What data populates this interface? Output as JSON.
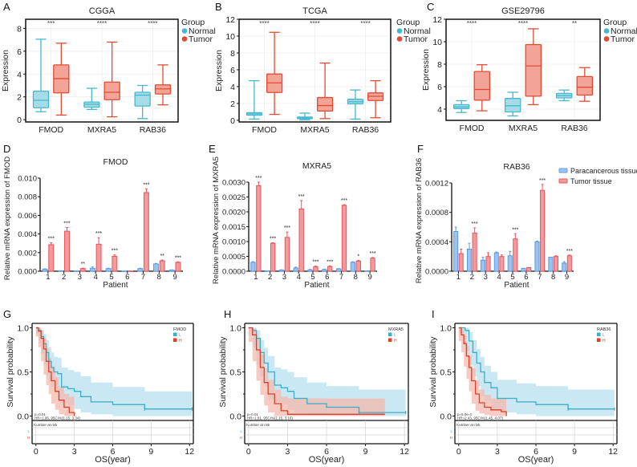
{
  "colors": {
    "normal": "#45b8cf",
    "normal_fill": "#a6dce8",
    "tumor": "#e34a33",
    "tumor_fill": "#f3a497",
    "para": "#5b9be6",
    "para_fill": "#9cc3f0",
    "tumor_tissue": "#e8555a",
    "tumor_tissue_fill": "#f49a9c",
    "km_low": "#3aaec4",
    "km_low_band": "#bfe4f2",
    "km_high": "#d9412b",
    "km_high_band": "#f4b9ae",
    "overlap_band": "#d6b8b6"
  },
  "chart_data": [
    {
      "panel": "A",
      "type": "box",
      "title": "CGGA",
      "xlabel": "",
      "ylabel": "Expression",
      "ylim": [
        -0.2,
        8.8
      ],
      "yticks": [
        0,
        2,
        4,
        6,
        8
      ],
      "categories": [
        "FMOD",
        "MXRA5",
        "RAB36"
      ],
      "significance": [
        "***",
        "****",
        "****"
      ],
      "legend": {
        "title": "Group",
        "entries": [
          "Normal",
          "Tumor"
        ],
        "position": "right"
      },
      "series": [
        {
          "name": "Normal",
          "boxes": [
            {
              "min": 0.7,
              "q1": 1.05,
              "median": 1.7,
              "q3": 2.5,
              "max": 7.05
            },
            {
              "min": 0.9,
              "q1": 1.1,
              "median": 1.35,
              "q3": 1.55,
              "max": 2.75
            },
            {
              "min": 0.1,
              "q1": 1.2,
              "median": 2.15,
              "q3": 2.4,
              "max": 3.0
            }
          ]
        },
        {
          "name": "Tumor",
          "boxes": [
            {
              "min": 0.4,
              "q1": 2.35,
              "median": 3.6,
              "q3": 4.8,
              "max": 6.7
            },
            {
              "min": 0.25,
              "q1": 1.75,
              "median": 2.4,
              "q3": 3.3,
              "max": 6.8
            },
            {
              "min": 1.3,
              "q1": 2.25,
              "median": 2.7,
              "q3": 3.05,
              "max": 4.8
            }
          ]
        }
      ]
    },
    {
      "panel": "B",
      "type": "box",
      "title": "TCGA",
      "xlabel": "",
      "ylabel": "Expression",
      "ylim": [
        -0.2,
        12.0
      ],
      "yticks": [
        0,
        2,
        4,
        6,
        8,
        10,
        12
      ],
      "categories": [
        "FMOD",
        "MXRA5",
        "RAB36"
      ],
      "significance": [
        "****",
        "****",
        "****"
      ],
      "legend": {
        "title": "Group",
        "entries": [
          "Normal",
          "Tumor"
        ],
        "position": "right"
      },
      "series": [
        {
          "name": "Normal",
          "boxes": [
            {
              "min": 0.15,
              "q1": 0.6,
              "median": 0.75,
              "q3": 0.9,
              "max": 4.7
            },
            {
              "min": 0.05,
              "q1": 0.2,
              "median": 0.28,
              "q3": 0.38,
              "max": 0.85
            },
            {
              "min": 0.15,
              "q1": 1.95,
              "median": 2.2,
              "q3": 2.5,
              "max": 3.6
            }
          ]
        },
        {
          "name": "Tumor",
          "boxes": [
            {
              "min": 0.7,
              "q1": 3.3,
              "median": 4.45,
              "q3": 5.5,
              "max": 10.45
            },
            {
              "min": 0.2,
              "q1": 1.1,
              "median": 1.75,
              "q3": 2.7,
              "max": 6.8
            },
            {
              "min": 0.3,
              "q1": 2.35,
              "median": 2.85,
              "q3": 3.25,
              "max": 4.7
            }
          ]
        }
      ]
    },
    {
      "panel": "C",
      "type": "box",
      "title": "GSE29796",
      "xlabel": "",
      "ylabel": "Expression",
      "ylim": [
        3.0,
        12.0
      ],
      "yticks": [
        4,
        6,
        8,
        10,
        12
      ],
      "categories": [
        "FMOD",
        "MXRA5",
        "RAB36"
      ],
      "significance": [
        "****",
        "****",
        "**"
      ],
      "legend": {
        "title": "Group",
        "entries": [
          "Normal",
          "Tumor"
        ],
        "position": "right"
      },
      "series": [
        {
          "name": "Normal",
          "boxes": [
            {
              "min": 3.7,
              "q1": 4.05,
              "median": 4.2,
              "q3": 4.4,
              "max": 4.75
            },
            {
              "min": 3.4,
              "q1": 3.75,
              "median": 4.3,
              "q3": 4.95,
              "max": 5.5
            },
            {
              "min": 4.75,
              "q1": 5.0,
              "median": 5.2,
              "q3": 5.4,
              "max": 5.7
            }
          ]
        },
        {
          "name": "Tumor",
          "boxes": [
            {
              "min": 3.85,
              "q1": 4.8,
              "median": 5.75,
              "q3": 7.35,
              "max": 7.95
            },
            {
              "min": 4.4,
              "q1": 5.15,
              "median": 7.85,
              "q3": 9.75,
              "max": 11.15
            },
            {
              "min": 4.7,
              "q1": 5.25,
              "median": 5.95,
              "q3": 6.9,
              "max": 7.7
            }
          ]
        }
      ]
    },
    {
      "panel": "D",
      "type": "bar",
      "title": "FMOD",
      "xlabel": "Patient",
      "ylabel": "Relative mRNA expression of FMOD",
      "ylim": [
        0,
        0.01
      ],
      "yticks": [
        "0.000",
        "0.002",
        "0.004",
        "0.006",
        "0.008",
        "0.010"
      ],
      "categories": [
        "1",
        "2",
        "3",
        "4",
        "5",
        "6",
        "7",
        "8",
        "9"
      ],
      "significance": [
        "***",
        "***",
        "**",
        "***",
        "***",
        "",
        "***",
        "**",
        "***"
      ],
      "series": [
        {
          "name": "Paracancerous tissue",
          "values": [
            0.00022,
            4e-05,
            3e-05,
            0.00032,
            0.00028,
            0.0,
            0.00028,
            0.00078,
            0.00012
          ],
          "errors": [
            4e-05,
            1e-05,
            1e-05,
            0.00014,
            5e-05,
            0.0,
            4e-05,
            6e-05,
            3e-05
          ]
        },
        {
          "name": "Tumor tissue",
          "values": [
            0.00285,
            0.0043,
            0.00028,
            0.0029,
            0.0016,
            1e-05,
            0.00845,
            0.00112,
            0.00095
          ],
          "errors": [
            0.0002,
            0.0004,
            5e-05,
            0.0007,
            0.00015,
            0.0,
            0.0004,
            8e-05,
            6e-05
          ]
        }
      ]
    },
    {
      "panel": "E",
      "type": "bar",
      "title": "MXRA5",
      "xlabel": "Patient",
      "ylabel": "Relative mRNA expression of MXRA5",
      "ylim": [
        0,
        0.003
      ],
      "yticks": [
        "0.0000",
        "0.0005",
        "0.0010",
        "0.0015",
        "0.0020",
        "0.0025",
        "0.0030"
      ],
      "categories": [
        "1",
        "2",
        "3",
        "4",
        "5",
        "6",
        "7",
        "8",
        "9"
      ],
      "significance": [
        "***",
        "***",
        "***",
        "***",
        "***",
        "***",
        "***",
        "*",
        "***"
      ],
      "series": [
        {
          "name": "Paracancerous tissue",
          "values": [
            0.0003,
            1e-05,
            4e-05,
            0.00011,
            5e-05,
            6e-05,
            8e-05,
            0.0003,
            1e-05
          ],
          "errors": [
            2e-05,
            0.0,
            1e-05,
            3e-05,
            1e-05,
            1e-05,
            1e-05,
            2e-05,
            0.0
          ]
        },
        {
          "name": "Tumor tissue",
          "values": [
            0.00288,
            0.00094,
            0.00114,
            0.0021,
            0.00015,
            0.00016,
            0.00222,
            0.00034,
            0.00044
          ],
          "errors": [
            0.00012,
            2e-05,
            0.00018,
            0.00028,
            2e-05,
            2e-05,
            2e-05,
            3e-05,
            2e-05
          ]
        }
      ]
    },
    {
      "panel": "F",
      "type": "bar",
      "title": "RAB36",
      "xlabel": "Patient",
      "ylabel": "Relative mRNA expression of RAB36",
      "ylim": [
        0,
        0.0012
      ],
      "yticks": [
        "0.0000",
        "0.0004",
        "0.0008",
        "0.0012"
      ],
      "categories": [
        "1",
        "2",
        "3",
        "4",
        "5",
        "6",
        "7",
        "8",
        "9"
      ],
      "significance": [
        "",
        "***",
        "",
        "",
        "***",
        "",
        "***",
        "",
        "***"
      ],
      "legend": {
        "entries": [
          "Paracancerous tissue",
          "Tumor tissue"
        ],
        "position": "top-right"
      },
      "series": [
        {
          "name": "Paracancerous tissue",
          "values": [
            0.00054,
            0.0003,
            0.00015,
            0.00025,
            0.00021,
            4e-05,
            0.0004,
            0.00019,
            0.00011
          ],
          "errors": [
            6e-05,
            8e-05,
            4e-05,
            1e-05,
            6e-05,
            0.0,
            1e-05,
            0.0,
            2e-05
          ]
        },
        {
          "name": "Tumor tissue",
          "values": [
            0.00024,
            0.00052,
            0.0002,
            0.0002,
            0.00044,
            5e-05,
            0.0011,
            0.0002,
            0.00021
          ],
          "errors": [
            6e-05,
            7e-05,
            5e-05,
            2e-05,
            7e-05,
            0.0,
            8e-05,
            1e-05,
            1e-05
          ]
        }
      ]
    },
    {
      "panel": "G",
      "type": "line",
      "subtype": "kaplan-meier",
      "title": "",
      "xlabel": "OS(year)",
      "ylabel": "Survival probability",
      "xlim": [
        -0.3,
        12.3
      ],
      "ylim": [
        -0.05,
        1.05
      ],
      "xticks": [
        0,
        3,
        6,
        9,
        12
      ],
      "yticks": [
        "0.0",
        "0.5",
        "1.0"
      ],
      "legend": {
        "title": "FMOD",
        "entries": [
          "L",
          "H"
        ],
        "position": "top-right"
      },
      "stats": {
        "p": "p=0.01",
        "hr": "HR=1.96, 95CI%(1.15, 3.34)"
      },
      "risk_table_title": "Number at risk",
      "risk_table_rows": [
        "L",
        "H"
      ],
      "series": [
        {
          "name": "L",
          "x": [
            0,
            0.2,
            0.4,
            0.6,
            0.8,
            1.0,
            1.2,
            1.4,
            1.7,
            2.0,
            2.5,
            3.0,
            3.5,
            4.3,
            6.0,
            8.5,
            10.5,
            12.2
          ],
          "y": [
            1.0,
            0.97,
            0.9,
            0.82,
            0.72,
            0.62,
            0.55,
            0.5,
            0.48,
            0.33,
            0.31,
            0.28,
            0.22,
            0.16,
            0.13,
            0.08,
            0.08,
            0.08
          ],
          "lower": [
            1.0,
            0.93,
            0.82,
            0.7,
            0.58,
            0.46,
            0.38,
            0.33,
            0.3,
            0.17,
            0.15,
            0.12,
            0.08,
            0.04,
            0.02,
            0.0,
            0.0,
            0.0
          ],
          "upper": [
            1.0,
            1.0,
            0.98,
            0.93,
            0.86,
            0.78,
            0.72,
            0.67,
            0.66,
            0.55,
            0.52,
            0.5,
            0.45,
            0.38,
            0.33,
            0.28,
            0.28,
            0.28
          ]
        },
        {
          "name": "H",
          "x": [
            0,
            0.2,
            0.4,
            0.6,
            0.8,
            1.0,
            1.2,
            1.5,
            1.8,
            2.2,
            2.6,
            3.0
          ],
          "y": [
            1.0,
            0.96,
            0.88,
            0.76,
            0.62,
            0.5,
            0.4,
            0.28,
            0.18,
            0.1,
            0.04,
            0.0
          ],
          "lower": [
            1.0,
            0.9,
            0.78,
            0.62,
            0.47,
            0.35,
            0.25,
            0.14,
            0.07,
            0.02,
            0.0,
            0.0
          ],
          "upper": [
            1.0,
            1.0,
            0.97,
            0.88,
            0.77,
            0.66,
            0.56,
            0.44,
            0.33,
            0.25,
            0.22,
            0.22
          ]
        }
      ]
    },
    {
      "panel": "H",
      "type": "line",
      "subtype": "kaplan-meier",
      "title": "",
      "xlabel": "OS(year)",
      "ylabel": "Survival probability",
      "xlim": [
        -0.3,
        12.3
      ],
      "ylim": [
        -0.05,
        1.05
      ],
      "xticks": [
        0,
        3,
        6,
        9,
        12
      ],
      "yticks": [
        "0.0",
        "0.5",
        "1.0"
      ],
      "legend": {
        "title": "MXRA5",
        "entries": [
          "L",
          "H"
        ],
        "position": "top-right"
      },
      "stats": {
        "p": "p=0.01",
        "hr": "HR=1.91, 95CI%(1.15, 3.16)"
      },
      "risk_table_title": "Number at risk",
      "risk_table_rows": [
        "L",
        "H"
      ],
      "series": [
        {
          "name": "L",
          "x": [
            0,
            0.3,
            0.6,
            0.9,
            1.2,
            1.5,
            2.0,
            2.5,
            3.0,
            3.5,
            4.5,
            6.0,
            8.5,
            10.5,
            12.1
          ],
          "y": [
            1.0,
            0.97,
            0.88,
            0.72,
            0.6,
            0.5,
            0.35,
            0.32,
            0.28,
            0.2,
            0.14,
            0.1,
            0.04,
            0.04,
            0.04
          ],
          "lower": [
            1.0,
            0.92,
            0.78,
            0.58,
            0.45,
            0.34,
            0.19,
            0.16,
            0.13,
            0.07,
            0.03,
            0.01,
            0.0,
            0.0,
            0.0
          ],
          "upper": [
            1.0,
            1.0,
            0.97,
            0.86,
            0.77,
            0.68,
            0.55,
            0.53,
            0.5,
            0.44,
            0.38,
            0.34,
            0.3,
            0.3,
            0.3
          ]
        },
        {
          "name": "H",
          "x": [
            0,
            0.3,
            0.6,
            0.9,
            1.2,
            1.5,
            2.0,
            2.5,
            3.0,
            4.0,
            6.0,
            8.0,
            10.5
          ],
          "y": [
            1.0,
            0.92,
            0.75,
            0.55,
            0.38,
            0.25,
            0.14,
            0.06,
            0.02,
            0.02,
            0.02,
            0.02,
            0.02
          ],
          "lower": [
            1.0,
            0.84,
            0.62,
            0.4,
            0.24,
            0.12,
            0.04,
            0.0,
            0.0,
            0.0,
            0.0,
            0.0,
            0.0
          ],
          "upper": [
            1.0,
            0.99,
            0.87,
            0.7,
            0.54,
            0.41,
            0.3,
            0.22,
            0.2,
            0.2,
            0.2,
            0.2,
            0.2
          ]
        }
      ]
    },
    {
      "panel": "I",
      "type": "line",
      "subtype": "kaplan-meier",
      "title": "",
      "xlabel": "OS(year)",
      "ylabel": "Survival probability",
      "xlim": [
        -0.3,
        12.3
      ],
      "ylim": [
        -0.05,
        1.05
      ],
      "xticks": [
        0,
        3,
        6,
        9,
        12
      ],
      "yticks": [
        "0.0",
        "0.5",
        "1.0"
      ],
      "legend": {
        "title": "RAB36",
        "entries": [
          "L",
          "H"
        ],
        "position": "top-right"
      },
      "stats": {
        "p": "p=5.0e-4",
        "hr": "HR=2.43, 95CI%(1.45, 4.07)"
      },
      "risk_table_title": "Number at risk",
      "risk_table_rows": [
        "L",
        "H"
      ],
      "series": [
        {
          "name": "L",
          "x": [
            0,
            0.5,
            0.8,
            1.1,
            1.4,
            1.7,
            2.0,
            2.5,
            3.0,
            3.3,
            4.5,
            6.0,
            8.5,
            10.5,
            12.1
          ],
          "y": [
            1.0,
            0.97,
            0.85,
            0.72,
            0.6,
            0.5,
            0.38,
            0.32,
            0.2,
            0.2,
            0.16,
            0.13,
            0.08,
            0.08,
            0.08
          ],
          "lower": [
            1.0,
            0.93,
            0.74,
            0.58,
            0.45,
            0.34,
            0.22,
            0.17,
            0.07,
            0.06,
            0.04,
            0.02,
            0.0,
            0.0,
            0.0
          ],
          "upper": [
            1.0,
            1.0,
            0.95,
            0.86,
            0.76,
            0.67,
            0.57,
            0.5,
            0.41,
            0.41,
            0.37,
            0.34,
            0.3,
            0.3,
            0.3
          ]
        },
        {
          "name": "H",
          "x": [
            0,
            0.2,
            0.4,
            0.6,
            0.8,
            1.0,
            1.3,
            1.6,
            2.0,
            2.5,
            3.3,
            3.7
          ],
          "y": [
            1.0,
            0.92,
            0.82,
            0.68,
            0.55,
            0.4,
            0.25,
            0.15,
            0.1,
            0.07,
            0.05,
            0.0
          ],
          "lower": [
            1.0,
            0.85,
            0.72,
            0.56,
            0.42,
            0.28,
            0.14,
            0.06,
            0.03,
            0.01,
            0.0,
            0.0
          ],
          "upper": [
            1.0,
            0.98,
            0.92,
            0.8,
            0.68,
            0.54,
            0.4,
            0.3,
            0.24,
            0.2,
            0.2,
            0.2
          ]
        }
      ]
    }
  ]
}
